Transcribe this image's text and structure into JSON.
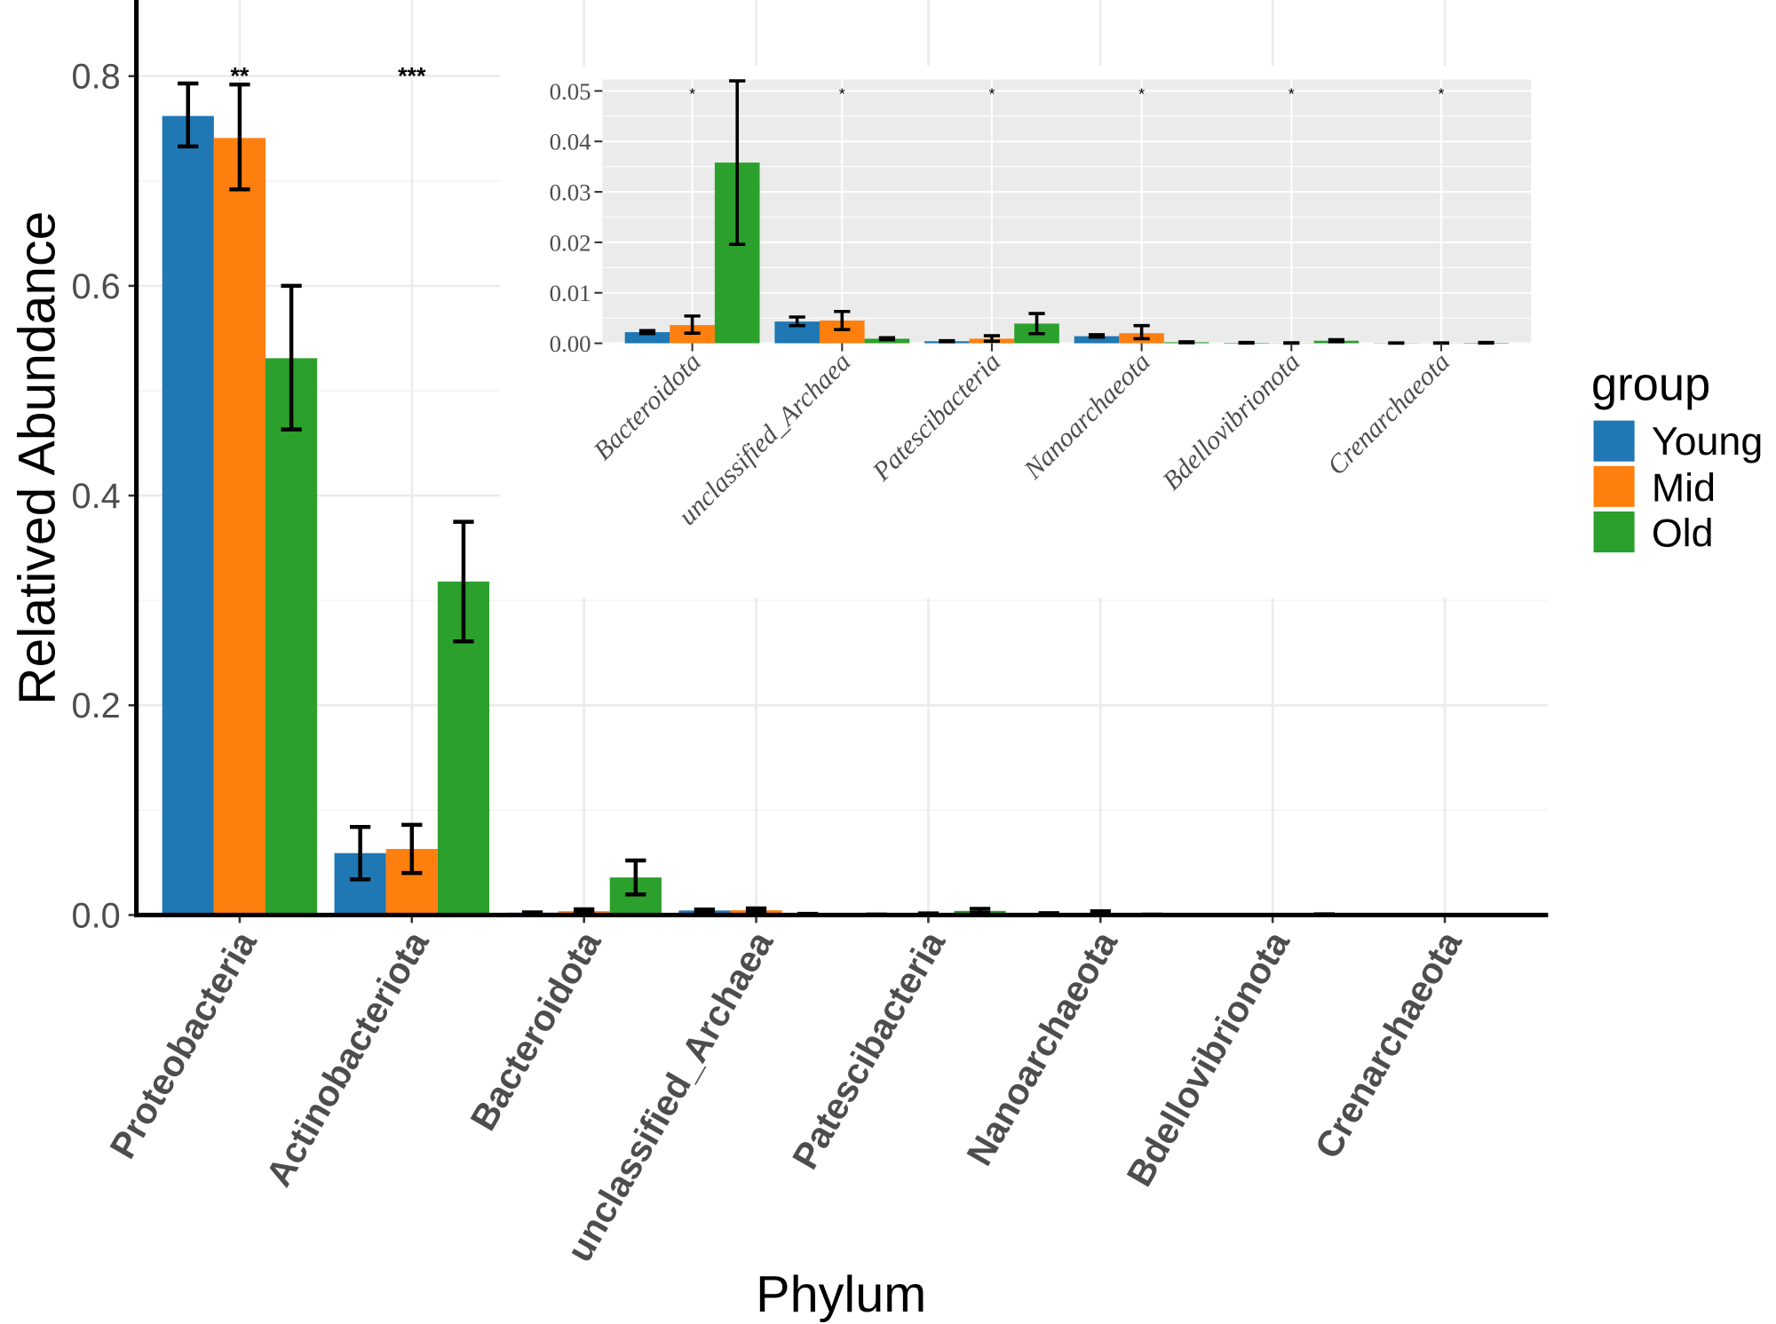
{
  "legend": {
    "title": "group",
    "position": "right"
  },
  "chart_data": [
    {
      "type": "bar",
      "xlabel": "Phylum",
      "ylabel": "Relatived Abundance",
      "ylim": [
        0,
        0.8726
      ],
      "yticks": [
        0,
        0.2,
        0.4,
        0.6,
        0.8
      ],
      "ytick_labels": [
        "0.0",
        "0.2",
        "0.4",
        "0.6",
        "0.8"
      ],
      "yminor": [
        0.1,
        0.3,
        0.5,
        0.7
      ],
      "grid": true,
      "categories": [
        "Proteobacteria",
        "Actinobacteriota",
        "Bacteroidota",
        "unclassified_Archaea",
        "Patescibacteria",
        "Nanoarchaeota",
        "Bdellovibrionota",
        "Crenarchaeota"
      ],
      "series": [
        {
          "name": "Young",
          "color": "#1f77b4",
          "values": [
            0.762,
            0.059,
            0.0022,
            0.0043,
            0.0004,
            0.0014,
            0.0001,
            5e-05
          ],
          "err_low": [
            0.733,
            0.034,
            0.0019,
            0.0035,
            0.0003,
            0.0012,
            5e-05,
            2e-05
          ],
          "err_high": [
            0.793,
            0.084,
            0.0025,
            0.0052,
            0.0005,
            0.0017,
            0.00015,
            8e-05
          ]
        },
        {
          "name": "Mid",
          "color": "#ff7f0e",
          "values": [
            0.741,
            0.063,
            0.0036,
            0.0045,
            0.0009,
            0.002,
            5e-05,
            3e-05
          ],
          "err_low": [
            0.692,
            0.04,
            0.002,
            0.0027,
            0.0004,
            0.0009,
            2e-05,
            1e-05
          ],
          "err_high": [
            0.792,
            0.086,
            0.0054,
            0.0063,
            0.0015,
            0.0035,
            0.0001,
            6e-05
          ]
        },
        {
          "name": "Old",
          "color": "#2ca02c",
          "values": [
            0.531,
            0.318,
            0.0358,
            0.0009,
            0.0039,
            0.0002,
            0.0005,
            0.0001
          ],
          "err_low": [
            0.463,
            0.261,
            0.0196,
            0.0007,
            0.0019,
            0.0001,
            0.0003,
            5e-05
          ],
          "err_high": [
            0.6,
            0.375,
            0.052,
            0.0011,
            0.0059,
            0.0003,
            0.0007,
            0.00015
          ]
        }
      ],
      "significance": [
        {
          "index": 0,
          "label": "**"
        },
        {
          "index": 1,
          "label": "***"
        }
      ]
    },
    {
      "type": "bar",
      "ylim": [
        0,
        0.05225
      ],
      "yticks": [
        0,
        0.01,
        0.02,
        0.03,
        0.04,
        0.05
      ],
      "ytick_labels": [
        "0.00",
        "0.01",
        "0.02",
        "0.03",
        "0.04",
        "0.05"
      ],
      "yminor": [
        0.005,
        0.015,
        0.025,
        0.035,
        0.045
      ],
      "grid": true,
      "categories": [
        "Bacteroidota",
        "unclassified_Archaea",
        "Patescibacteria",
        "Nanoarchaeota",
        "Bdellovibrionota",
        "Crenarchaeota"
      ],
      "series": [
        {
          "color": "#1f77b4",
          "values": [
            0.0022,
            0.0043,
            0.0004,
            0.0014,
            0.0001,
            5e-05
          ],
          "err_low": [
            0.0019,
            0.0035,
            0.0003,
            0.0012,
            5e-05,
            2e-05
          ],
          "err_high": [
            0.0025,
            0.0052,
            0.0005,
            0.0017,
            0.00015,
            8e-05
          ]
        },
        {
          "color": "#ff7f0e",
          "values": [
            0.0036,
            0.0045,
            0.0009,
            0.002,
            5e-05,
            3e-05
          ],
          "err_low": [
            0.002,
            0.0027,
            0.0004,
            0.0009,
            2e-05,
            1e-05
          ],
          "err_high": [
            0.0054,
            0.0063,
            0.0015,
            0.0035,
            0.0001,
            6e-05
          ]
        },
        {
          "color": "#2ca02c",
          "values": [
            0.0358,
            0.0009,
            0.0039,
            0.0002,
            0.0005,
            0.0001
          ],
          "err_low": [
            0.0196,
            0.0007,
            0.0019,
            0.0001,
            0.0003,
            5e-05
          ],
          "err_high": [
            0.052,
            0.0011,
            0.0059,
            0.0003,
            0.0007,
            0.00015
          ]
        }
      ],
      "significance": [
        {
          "index": 0,
          "label": "*"
        },
        {
          "index": 1,
          "label": "*"
        },
        {
          "index": 2,
          "label": "*"
        },
        {
          "index": 3,
          "label": "*"
        },
        {
          "index": 4,
          "label": "*"
        },
        {
          "index": 5,
          "label": "*"
        }
      ]
    }
  ]
}
